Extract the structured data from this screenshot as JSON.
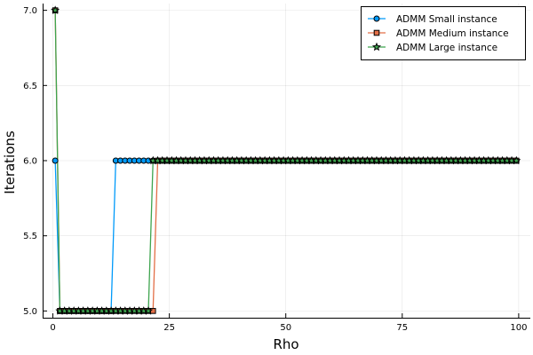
{
  "chart_data": {
    "type": "line",
    "xlabel": "Rho",
    "ylabel": "Iterations",
    "xlim": [
      -2.2,
      102.5
    ],
    "ylim": [
      4.955,
      7.045
    ],
    "x_ticks": [
      0,
      25,
      50,
      75,
      100
    ],
    "y_ticks": [
      5.0,
      5.5,
      6.0,
      6.5,
      7.0
    ],
    "x_tick_labels": [
      "0",
      "25",
      "50",
      "75",
      "100"
    ],
    "y_tick_labels": [
      "5.0",
      "5.5",
      "6.0",
      "6.5",
      "7.0"
    ],
    "grid": true,
    "legend_position": "top-right",
    "x": [
      0.5,
      1.5,
      2.5,
      3.5,
      4.5,
      5.5,
      6.5,
      7.5,
      8.5,
      9.5,
      10.5,
      11.5,
      12.5,
      13.5,
      14.5,
      15.5,
      16.5,
      17.5,
      18.5,
      19.5,
      20.5,
      21.5,
      22.5,
      23.5,
      24.5,
      25.5,
      26.5,
      27.5,
      28.5,
      29.5,
      30.5,
      31.5,
      32.5,
      33.5,
      34.5,
      35.5,
      36.5,
      37.5,
      38.5,
      39.5,
      40.5,
      41.5,
      42.5,
      43.5,
      44.5,
      45.5,
      46.5,
      47.5,
      48.5,
      49.5,
      50.5,
      51.5,
      52.5,
      53.5,
      54.5,
      55.5,
      56.5,
      57.5,
      58.5,
      59.5,
      60.5,
      61.5,
      62.5,
      63.5,
      64.5,
      65.5,
      66.5,
      67.5,
      68.5,
      69.5,
      70.5,
      71.5,
      72.5,
      73.5,
      74.5,
      75.5,
      76.5,
      77.5,
      78.5,
      79.5,
      80.5,
      81.5,
      82.5,
      83.5,
      84.5,
      85.5,
      86.5,
      87.5,
      88.5,
      89.5,
      90.5,
      91.5,
      92.5,
      93.5,
      94.5,
      95.5,
      96.5,
      97.5,
      98.5,
      99.5
    ],
    "series": [
      {
        "name": "ADMM Small instance",
        "color": "#009AFA",
        "marker": "circle",
        "values": [
          6,
          5,
          5,
          5,
          5,
          5,
          5,
          5,
          5,
          5,
          5,
          5,
          5,
          6,
          6,
          6,
          6,
          6,
          6,
          6,
          6,
          6,
          6,
          6,
          6,
          6,
          6,
          6,
          6,
          6,
          6,
          6,
          6,
          6,
          6,
          6,
          6,
          6,
          6,
          6,
          6,
          6,
          6,
          6,
          6,
          6,
          6,
          6,
          6,
          6,
          6,
          6,
          6,
          6,
          6,
          6,
          6,
          6,
          6,
          6,
          6,
          6,
          6,
          6,
          6,
          6,
          6,
          6,
          6,
          6,
          6,
          6,
          6,
          6,
          6,
          6,
          6,
          6,
          6,
          6,
          6,
          6,
          6,
          6,
          6,
          6,
          6,
          6,
          6,
          6,
          6,
          6,
          6,
          6,
          6,
          6,
          6,
          6,
          6,
          6
        ]
      },
      {
        "name": "ADMM Medium instance",
        "color": "#E36F47",
        "marker": "square",
        "values": [
          7,
          5,
          5,
          5,
          5,
          5,
          5,
          5,
          5,
          5,
          5,
          5,
          5,
          5,
          5,
          5,
          5,
          5,
          5,
          5,
          5,
          5,
          6,
          6,
          6,
          6,
          6,
          6,
          6,
          6,
          6,
          6,
          6,
          6,
          6,
          6,
          6,
          6,
          6,
          6,
          6,
          6,
          6,
          6,
          6,
          6,
          6,
          6,
          6,
          6,
          6,
          6,
          6,
          6,
          6,
          6,
          6,
          6,
          6,
          6,
          6,
          6,
          6,
          6,
          6,
          6,
          6,
          6,
          6,
          6,
          6,
          6,
          6,
          6,
          6,
          6,
          6,
          6,
          6,
          6,
          6,
          6,
          6,
          6,
          6,
          6,
          6,
          6,
          6,
          6,
          6,
          6,
          6,
          6,
          6,
          6,
          6,
          6,
          6,
          6
        ]
      },
      {
        "name": "ADMM Large instance",
        "color": "#3EA44E",
        "marker": "star",
        "values": [
          7,
          5,
          5,
          5,
          5,
          5,
          5,
          5,
          5,
          5,
          5,
          5,
          5,
          5,
          5,
          5,
          5,
          5,
          5,
          5,
          5,
          6,
          6,
          6,
          6,
          6,
          6,
          6,
          6,
          6,
          6,
          6,
          6,
          6,
          6,
          6,
          6,
          6,
          6,
          6,
          6,
          6,
          6,
          6,
          6,
          6,
          6,
          6,
          6,
          6,
          6,
          6,
          6,
          6,
          6,
          6,
          6,
          6,
          6,
          6,
          6,
          6,
          6,
          6,
          6,
          6,
          6,
          6,
          6,
          6,
          6,
          6,
          6,
          6,
          6,
          6,
          6,
          6,
          6,
          6,
          6,
          6,
          6,
          6,
          6,
          6,
          6,
          6,
          6,
          6,
          6,
          6,
          6,
          6,
          6,
          6,
          6,
          6,
          6,
          6
        ]
      }
    ]
  }
}
